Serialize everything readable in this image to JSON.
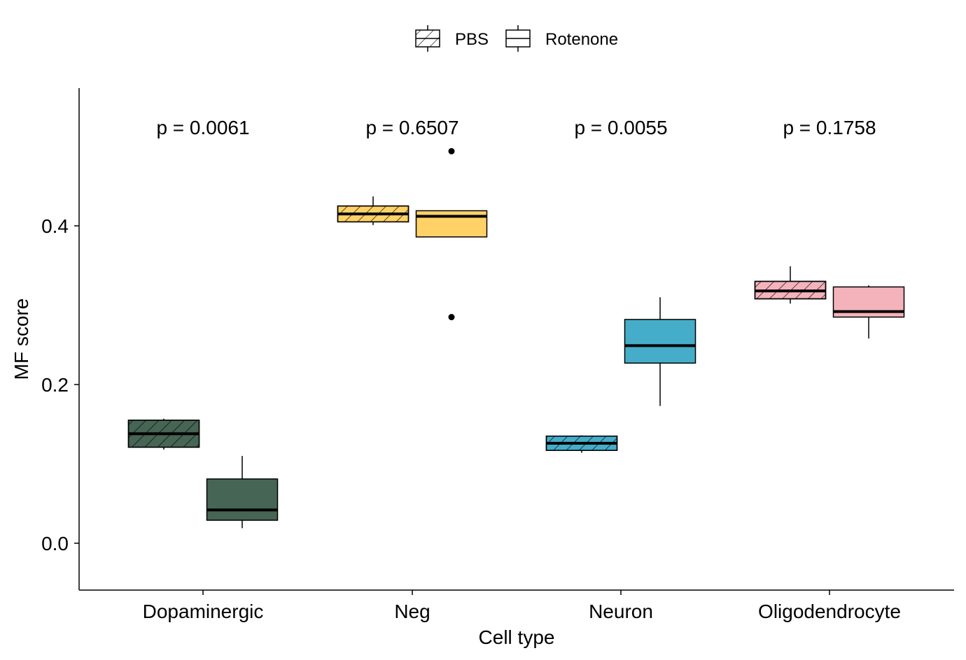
{
  "chart_data": {
    "type": "boxplot",
    "xlabel": "Cell type",
    "ylabel": "MF score",
    "ylim": [
      -0.06,
      0.57
    ],
    "yticks": [
      0.0,
      0.2,
      0.4
    ],
    "ytick_labels": [
      "0.0",
      "0.2",
      "0.4"
    ],
    "grid": false,
    "legend": {
      "placement": "top-center",
      "entries": [
        {
          "label": "PBS",
          "pattern": "hatched"
        },
        {
          "label": "Rotenone",
          "pattern": "solid"
        }
      ]
    },
    "categories": [
      "Dopaminergic",
      "Neg",
      "Neuron",
      "Oligodendrocyte"
    ],
    "colors": {
      "Dopaminergic": "#466555",
      "Neg": "#FFD166",
      "Neuron": "#45ADC9",
      "Oligodendrocyte": "#F4B3BB"
    },
    "p_values": [
      "p = 0.0061",
      "p = 0.6507",
      "p = 0.0055",
      "p = 0.1758"
    ],
    "series": [
      {
        "name": "PBS",
        "boxes": [
          {
            "category": "Dopaminergic",
            "whisker_low": 0.118,
            "q1": 0.121,
            "median": 0.138,
            "q3": 0.155,
            "whisker_high": 0.157,
            "outliers": []
          },
          {
            "category": "Neg",
            "whisker_low": 0.401,
            "q1": 0.405,
            "median": 0.415,
            "q3": 0.425,
            "whisker_high": 0.437,
            "outliers": []
          },
          {
            "category": "Neuron",
            "whisker_low": 0.114,
            "q1": 0.117,
            "median": 0.126,
            "q3": 0.135,
            "whisker_high": 0.136,
            "outliers": []
          },
          {
            "category": "Oligodendrocyte",
            "whisker_low": 0.302,
            "q1": 0.308,
            "median": 0.318,
            "q3": 0.33,
            "whisker_high": 0.349,
            "outliers": []
          }
        ]
      },
      {
        "name": "Rotenone",
        "boxes": [
          {
            "category": "Dopaminergic",
            "whisker_low": 0.019,
            "q1": 0.029,
            "median": 0.042,
            "q3": 0.081,
            "whisker_high": 0.11,
            "outliers": []
          },
          {
            "category": "Neg",
            "whisker_low": 0.386,
            "q1": 0.386,
            "median": 0.412,
            "q3": 0.419,
            "whisker_high": 0.419,
            "outliers": [
              0.494,
              0.285
            ]
          },
          {
            "category": "Neuron",
            "whisker_low": 0.173,
            "q1": 0.227,
            "median": 0.249,
            "q3": 0.282,
            "whisker_high": 0.31,
            "outliers": []
          },
          {
            "category": "Oligodendrocyte",
            "whisker_low": 0.258,
            "q1": 0.285,
            "median": 0.292,
            "q3": 0.323,
            "whisker_high": 0.325,
            "outliers": []
          }
        ]
      }
    ]
  }
}
